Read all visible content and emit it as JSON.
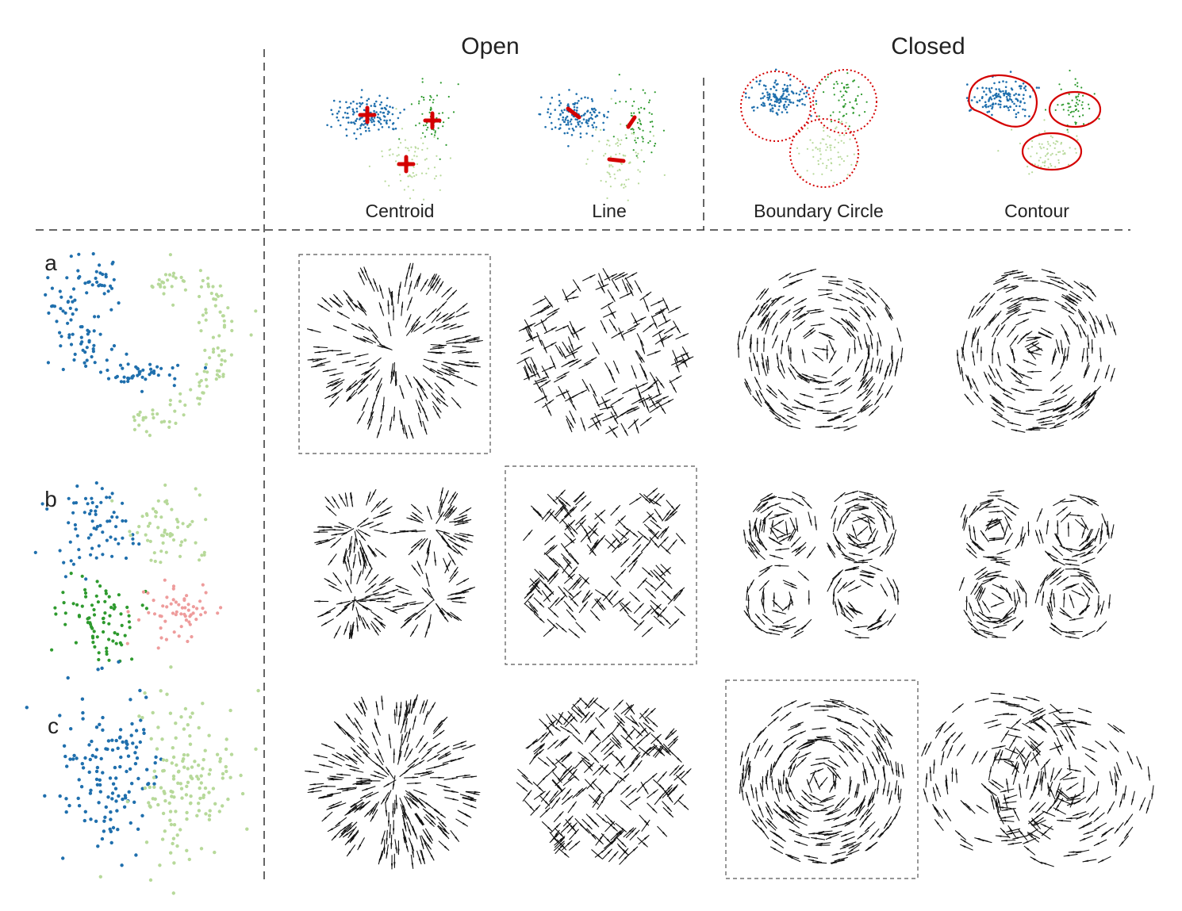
{
  "header": {
    "groups": [
      {
        "label": "Open"
      },
      {
        "label": "Closed"
      }
    ],
    "columns": [
      {
        "label": "Centroid"
      },
      {
        "label": "Line"
      },
      {
        "label": "Boundary Circle"
      },
      {
        "label": "Contour"
      }
    ]
  },
  "rows": [
    {
      "label": "a",
      "pattern": "two-moons",
      "highlighted_column": 0
    },
    {
      "label": "b",
      "pattern": "four-clusters",
      "highlighted_column": 1
    },
    {
      "label": "c",
      "pattern": "two-halves",
      "highlighted_column": 2
    }
  ],
  "colors": {
    "blue": "#1f6fad",
    "dark_green": "#2e9a2e",
    "light_green": "#b7d99a",
    "pink": "#ee9c9c",
    "red": "#d40000",
    "arrow": "#111111",
    "divider": "#333333"
  }
}
